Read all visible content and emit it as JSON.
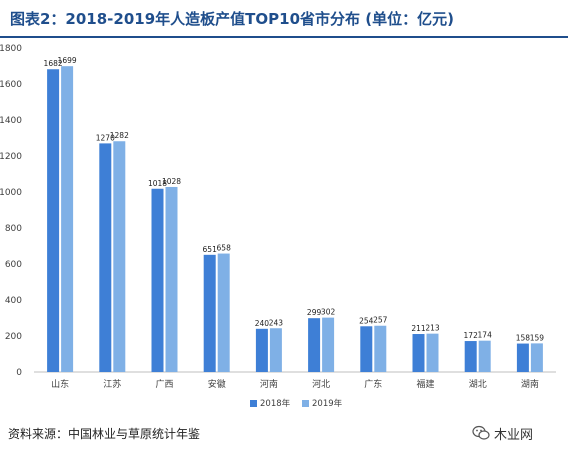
{
  "header": {
    "title": "图表2：2018-2019年人造板产值TOP10省市分布 (单位：亿元)"
  },
  "footer": {
    "source": "资料来源：中国林业与草原统计年鉴",
    "logo_text": "木业网"
  },
  "colors": {
    "series_2018": "#3e7fd6",
    "series_2019": "#7fb0e6",
    "title": "#1f4e8c"
  },
  "chart_data": {
    "type": "bar",
    "title": "2018-2019年人造板产值TOP10省市分布",
    "unit": "亿元",
    "categories": [
      "山东",
      "江苏",
      "广西",
      "安徽",
      "河南",
      "河北",
      "广东",
      "福建",
      "湖北",
      "湖南"
    ],
    "series": [
      {
        "name": "2018年",
        "values": [
          1682,
          1270,
          1018,
          651,
          240,
          299,
          254,
          211,
          172,
          158
        ]
      },
      {
        "name": "2019年",
        "values": [
          1699,
          1282,
          1028,
          658,
          243,
          302,
          257,
          213,
          174,
          159
        ]
      }
    ],
    "ylim": [
      0,
      1800
    ],
    "yticks": [
      0,
      200,
      400,
      600,
      800,
      1000,
      1200,
      1400,
      1600,
      1800
    ],
    "grid": false,
    "legend_position": "bottom"
  }
}
